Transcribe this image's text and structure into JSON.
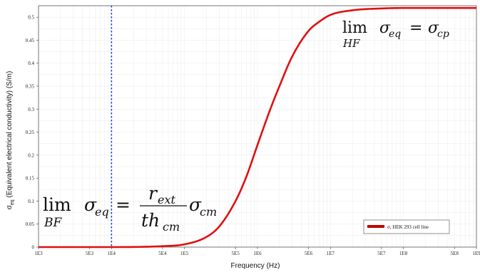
{
  "chart_data": {
    "type": "line",
    "xscale": "log",
    "xlabel": "Frequency (Hz)",
    "ylabel_main": "σ",
    "ylabel_sub": "eq",
    "ylabel_rest": " (Equivalent electrical conductivity) (S/m)",
    "xlim": [
      1000,
      1000000000
    ],
    "ylim": [
      0,
      0.525
    ],
    "x_ticks": [
      {
        "value": 1000,
        "label": "1E3"
      },
      {
        "value": 5000,
        "label": "5E3"
      },
      {
        "value": 10000,
        "label": "1E4"
      },
      {
        "value": 50000,
        "label": "5E4"
      },
      {
        "value": 100000,
        "label": "1E5"
      },
      {
        "value": 500000,
        "label": "5E5"
      },
      {
        "value": 1000000,
        "label": "1E6"
      },
      {
        "value": 5000000,
        "label": "5E6"
      },
      {
        "value": 10000000,
        "label": "1E7"
      },
      {
        "value": 50000000,
        "label": "5E7"
      },
      {
        "value": 100000000,
        "label": "1E8"
      },
      {
        "value": 500000000,
        "label": "5E8"
      },
      {
        "value": 1000000000,
        "label": "1E9"
      }
    ],
    "y_ticks": [
      {
        "value": 0,
        "label": "0"
      },
      {
        "value": 0.05,
        "label": "0.05"
      },
      {
        "value": 0.1,
        "label": "0.1"
      },
      {
        "value": 0.15,
        "label": "0.15"
      },
      {
        "value": 0.2,
        "label": "0.2"
      },
      {
        "value": 0.25,
        "label": "0.25"
      },
      {
        "value": 0.3,
        "label": "0.3"
      },
      {
        "value": 0.35,
        "label": "0.35"
      },
      {
        "value": 0.4,
        "label": "0.4"
      },
      {
        "value": 0.45,
        "label": "0.45"
      },
      {
        "value": 0.5,
        "label": "0.5"
      }
    ],
    "grid": true,
    "series": [
      {
        "name": "σ, HEK 293 cell line",
        "color": "#e01010",
        "x": [
          1000,
          10000,
          50000,
          100000,
          200000,
          300000,
          500000,
          700000,
          1000000,
          1500000,
          2000000,
          3000000,
          5000000,
          7000000,
          10000000,
          20000000,
          50000000,
          100000000,
          1000000000
        ],
        "y": [
          0.0,
          0.0,
          0.002,
          0.006,
          0.022,
          0.045,
          0.1,
          0.152,
          0.222,
          0.3,
          0.35,
          0.415,
          0.47,
          0.49,
          0.505,
          0.515,
          0.519,
          0.52,
          0.52
        ]
      }
    ],
    "vline": {
      "x": 10000,
      "color": "#2040f0",
      "style": "dotted"
    },
    "legend": {
      "position": "bottom-right"
    },
    "annotations": {
      "hf": {
        "lim": "lim",
        "sub": "HF",
        "lhs": "σ",
        "lhs_sub": "eq",
        "eq": "=",
        "rhs": "σ",
        "rhs_sub": "cp"
      },
      "bf": {
        "lim": "lim",
        "sub": "BF",
        "lhs": "σ",
        "lhs_sub": "eq",
        "eq": "=",
        "num": "r",
        "num_sub": "ext",
        "den": "th",
        "den_sub": "cm",
        "rhs": "σ",
        "rhs_sub": "cm"
      }
    }
  }
}
